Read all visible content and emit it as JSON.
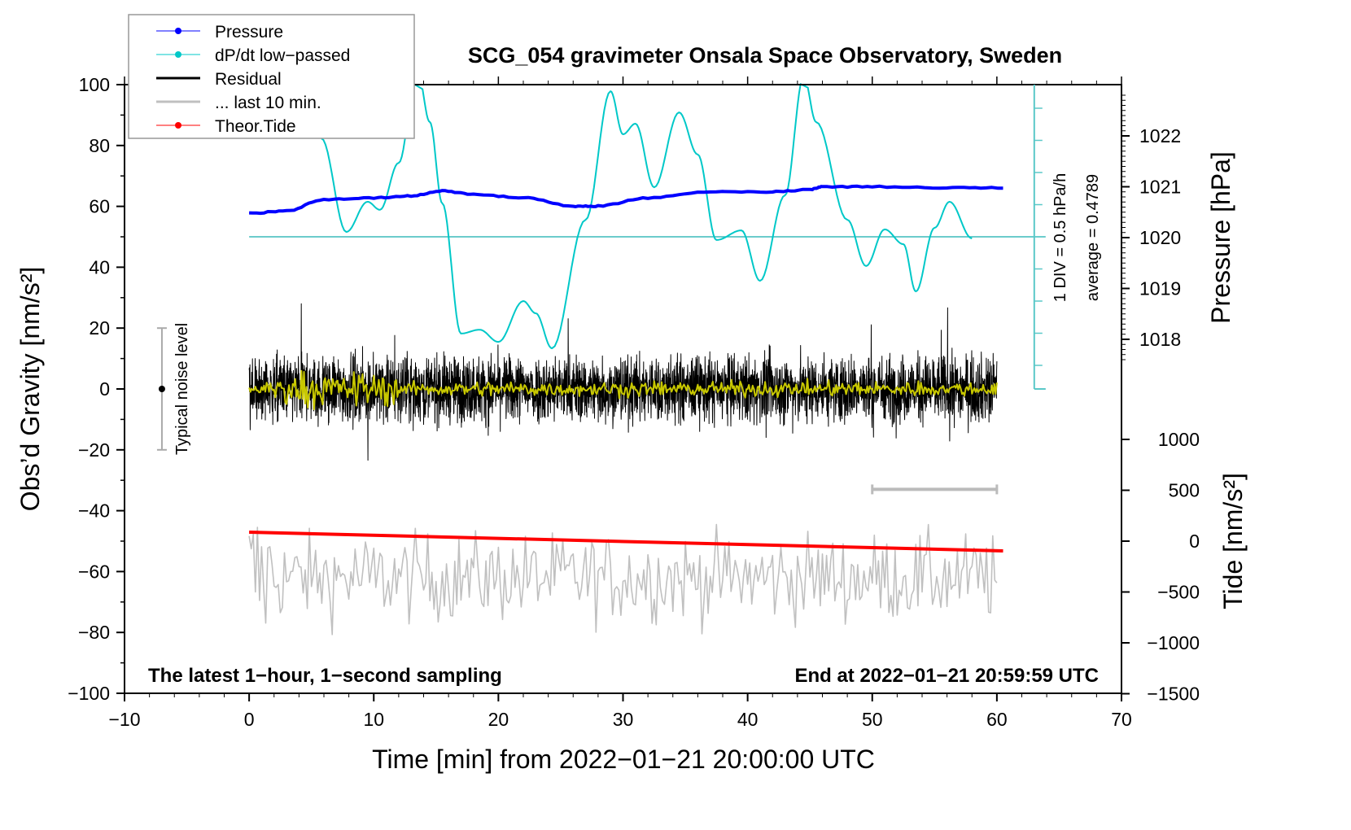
{
  "chart_data": {
    "type": "line",
    "title": "SCG_054 gravimeter Onsala Space Observatory, Sweden",
    "xlabel": "Time [min] from 2022−01−21 20:00:00 UTC",
    "ylabel_left": "Obs’d Gravity [nm/s²]",
    "ylabel_right_pressure": "Pressure [hPa]",
    "ylabel_right_tide": "Tide [nm/s²]",
    "xlim": [
      -10,
      70
    ],
    "ylim": [
      -100,
      100
    ],
    "x_ticks": [
      "−10",
      "0",
      "10",
      "20",
      "30",
      "40",
      "50",
      "60",
      "70"
    ],
    "y_ticks": [
      "−100",
      "−80",
      "−60",
      "−40",
      "−20",
      "0",
      "20",
      "40",
      "60",
      "80",
      "100"
    ],
    "pressure_ticks": [
      "1022",
      "1021",
      "1020",
      "1019",
      "1018"
    ],
    "tide_ticks": [
      "1000",
      "500",
      "0",
      "−500",
      "−1000",
      "−1500"
    ],
    "annotation_left": "The latest 1−hour, 1−second sampling",
    "annotation_right": "End at 2022−01−21 20:59:59 UTC",
    "noise_label": "Typical noise level",
    "noise_level_range": [
      -20,
      20
    ],
    "noise_level_x": -7,
    "dpdt_div_label": "1 DIV = 0.5 hPa/h",
    "dpdt_average_label": "average = 0.4789",
    "dpdt_axis_x": 63,
    "dpdt_baseline_gravity": 50,
    "last10_bar": {
      "x": [
        50,
        60
      ],
      "y": -33
    },
    "legend": {
      "position": "top-left",
      "entries": [
        {
          "label": "Pressure",
          "color": "#0000ff",
          "marker": true
        },
        {
          "label": "dP/dt low−passed",
          "color": "#00c8c8",
          "marker": true
        },
        {
          "label": "Residual",
          "color": "#000000",
          "marker": false
        },
        {
          "label": "... last 10 min.",
          "color": "#c0c0c0",
          "marker": false
        },
        {
          "label": "Theor.Tide",
          "color": "#ff0000",
          "marker": true
        }
      ]
    },
    "series": [
      {
        "name": "Pressure",
        "unit": "hPa",
        "color": "#0000ff",
        "x": [
          0,
          3,
          6,
          10,
          13,
          15.5,
          18,
          22,
          26,
          28,
          32,
          37,
          42,
          45,
          46,
          50,
          56,
          60.5
        ],
        "y": [
          1020.48,
          1020.52,
          1020.75,
          1020.78,
          1020.82,
          1020.92,
          1020.85,
          1020.78,
          1020.62,
          1020.62,
          1020.78,
          1020.9,
          1020.9,
          1020.94,
          1021.0,
          1021.0,
          1020.98,
          1020.98
        ]
      },
      {
        "name": "dP/dt low-passed",
        "unit": "div",
        "color": "#00c8c8",
        "x": [
          5.8,
          7.8,
          9.5,
          10.5,
          12,
          13.5,
          14.5,
          15.5,
          17,
          18.5,
          20,
          22,
          23,
          24.3,
          27,
          29,
          30,
          31,
          32.5,
          34.5,
          36,
          37.5,
          39.5,
          41,
          43,
          44.5,
          45.5,
          48,
          49.5,
          51,
          52.5,
          53.5,
          55,
          56.2,
          58
        ],
        "y": [
          3.06,
          0.15,
          1.09,
          0.84,
          2.3,
          5.2,
          3.57,
          1.04,
          -3.01,
          -2.89,
          -3.27,
          -2.0,
          -2.38,
          -3.47,
          0.53,
          4.53,
          3.19,
          3.52,
          1.54,
          3.87,
          2.56,
          -0.1,
          0.2,
          -1.37,
          1.29,
          5.0,
          3.57,
          0.53,
          -0.91,
          0.23,
          -0.23,
          -1.7,
          0.28,
          1.09,
          -0.05
        ]
      },
      {
        "name": "Residual",
        "unit": "nm/s²",
        "color": "#000000",
        "x_range": [
          0,
          60
        ],
        "noise_amplitude": 12,
        "peak_amplitude": 28
      },
      {
        "name": "Residual smoothed",
        "unit": "nm/s²",
        "color": "#c8c800",
        "x_range": [
          0,
          60
        ],
        "noise_amplitude": 3
      },
      {
        "name": "... last 10 min.",
        "unit": "nm/s²",
        "color": "#c0c0c0",
        "x_range": [
          0,
          60
        ],
        "offset": -62,
        "noise_amplitude": 12
      },
      {
        "name": "Theor.Tide",
        "unit": "nm/s²",
        "color": "#ff0000",
        "x": [
          0,
          60.5
        ],
        "y": [
          88,
          -96
        ]
      }
    ]
  }
}
